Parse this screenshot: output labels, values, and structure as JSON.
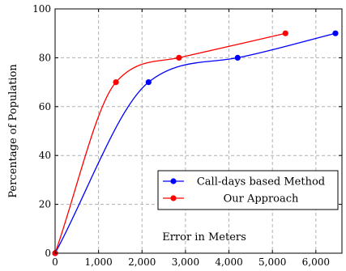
{
  "chart_data": {
    "type": "line",
    "xlabel": "Error in Meters",
    "ylabel": "Percentage of Population",
    "xlim": [
      0,
      6600
    ],
    "ylim": [
      0,
      100
    ],
    "xticks": [
      0,
      1000,
      2000,
      3000,
      4000,
      5000,
      6000
    ],
    "xtick_labels": [
      "0",
      "1,000",
      "2,000",
      "3,000",
      "4,000",
      "5,000",
      "6,000"
    ],
    "yticks": [
      0,
      20,
      40,
      60,
      80,
      100
    ],
    "ytick_labels": [
      "0",
      "20",
      "40",
      "60",
      "80",
      "100"
    ],
    "grid": true,
    "legend_position": "lower-right",
    "series": [
      {
        "name": "Call-days based Method",
        "color": "#0000ff",
        "x": [
          0,
          2150,
          4200,
          6450
        ],
        "y": [
          0,
          70,
          80,
          90
        ]
      },
      {
        "name": "Our Approach",
        "color": "#ff0000",
        "x": [
          0,
          1400,
          2850,
          5300
        ],
        "y": [
          0,
          70,
          80,
          90
        ]
      }
    ]
  }
}
